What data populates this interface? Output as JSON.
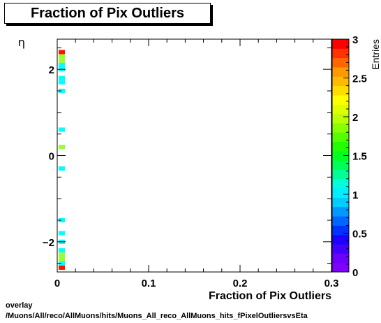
{
  "title": "Fraction of Pix Outliers",
  "footer": {
    "line1": "overlay",
    "line2": "/Muons/All/reco/AllMuons/hits/Muons_All_reco_AllMuons_hits_fPixelOutliersvsEta"
  },
  "chart_data": {
    "type": "heatmap",
    "title": "Fraction of Pix Outliers",
    "xlabel": "Fraction of Pix Outliers",
    "ylabel": "η",
    "zlabel": "Entries",
    "xlim": [
      0,
      0.3
    ],
    "ylim": [
      -2.7,
      2.7
    ],
    "zlim": [
      0,
      3
    ],
    "x_ticks": [
      "0",
      "0.1",
      "0.2",
      "0.3"
    ],
    "y_ticks": [
      "−2",
      "0",
      "2"
    ],
    "z_ticks": [
      "0",
      "0.5",
      "1",
      "1.5",
      "2",
      "2.5",
      "3"
    ],
    "x_bin_width": 0.01,
    "cells": [
      {
        "x": 0.005,
        "eta": 2.4,
        "entries": 3
      },
      {
        "x": 0.005,
        "eta": 2.3,
        "entries": 2
      },
      {
        "x": 0.005,
        "eta": 2.2,
        "entries": 2
      },
      {
        "x": 0.005,
        "eta": 2.1,
        "entries": 1
      },
      {
        "x": 0.005,
        "eta": 2.0,
        "entries": 1
      },
      {
        "x": 0.005,
        "eta": 1.8,
        "entries": 1
      },
      {
        "x": 0.005,
        "eta": 1.7,
        "entries": 1
      },
      {
        "x": 0.005,
        "eta": 1.5,
        "entries": 1
      },
      {
        "x": 0.005,
        "eta": 0.6,
        "entries": 1
      },
      {
        "x": 0.005,
        "eta": 0.2,
        "entries": 2
      },
      {
        "x": 0.005,
        "eta": -0.3,
        "entries": 1
      },
      {
        "x": 0.005,
        "eta": -1.5,
        "entries": 1
      },
      {
        "x": 0.005,
        "eta": -1.8,
        "entries": 1
      },
      {
        "x": 0.005,
        "eta": -2.0,
        "entries": 1
      },
      {
        "x": 0.005,
        "eta": -2.2,
        "entries": 1
      },
      {
        "x": 0.005,
        "eta": -2.3,
        "entries": 2
      },
      {
        "x": 0.005,
        "eta": -2.4,
        "entries": 2
      },
      {
        "x": 0.005,
        "eta": -2.5,
        "entries": 1
      },
      {
        "x": 0.005,
        "eta": -2.6,
        "entries": 3
      }
    ],
    "palette": [
      "#7f00ff",
      "#6a00ff",
      "#4400ff",
      "#1e00ff",
      "#0033ff",
      "#0066ff",
      "#0099ff",
      "#00ccff",
      "#00eeff",
      "#00ffdd",
      "#00ff99",
      "#00ff55",
      "#00ff22",
      "#22ff00",
      "#55ff00",
      "#88ff00",
      "#bbff00",
      "#ddff00",
      "#ffff00",
      "#ffdd00",
      "#ffbb00",
      "#ff9900",
      "#ff6600",
      "#ff3300",
      "#ff0000"
    ],
    "cell_colors": {
      "1": "#00ffff",
      "2": "#99ff33",
      "3": "#ff1100"
    },
    "grid": false,
    "legend": "right colorbar"
  }
}
